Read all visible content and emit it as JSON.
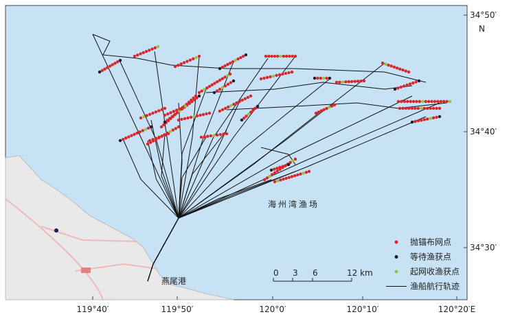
{
  "axes": {
    "x_labels": [
      "119°40′",
      "119°50′",
      "120°0′",
      "120°10′",
      "120°20′E"
    ],
    "y_labels": [
      "34°50′",
      "34°40′",
      "34°30′"
    ],
    "north": "N"
  },
  "places": {
    "harbor": "燕尾港",
    "fishing_ground": "海州湾渔场"
  },
  "scale_bar": {
    "labels": [
      "0",
      "3",
      "6",
      "12 km"
    ]
  },
  "legend": [
    {
      "label": "抛锚布网点",
      "color": "#e8202a"
    },
    {
      "label": "等待渔获点",
      "color": "#1b1b2e"
    },
    {
      "label": "起网收渔获点",
      "color": "#8cc63f"
    },
    {
      "label": "渔船航行轨迹",
      "color": "#111111"
    }
  ]
}
